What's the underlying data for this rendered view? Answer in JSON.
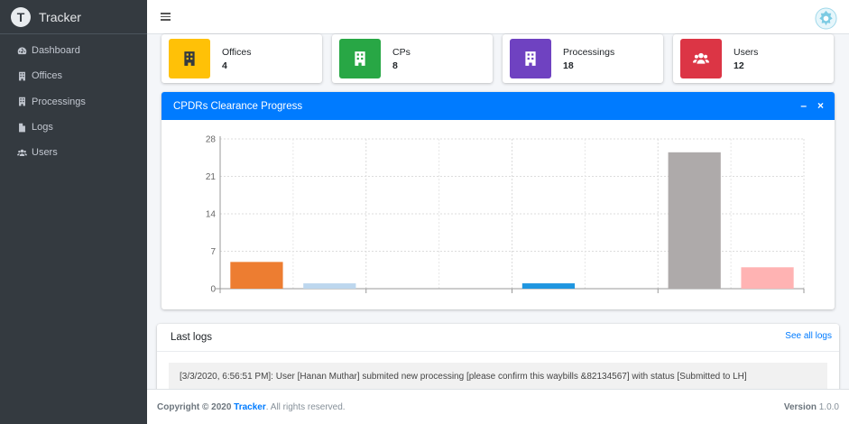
{
  "brand": {
    "logo_letter": "T",
    "name": "Tracker"
  },
  "sidebar": {
    "items": [
      {
        "label": "Dashboard",
        "icon": "tachometer-icon"
      },
      {
        "label": "Offices",
        "icon": "building-icon"
      },
      {
        "label": "Processings",
        "icon": "building-icon"
      },
      {
        "label": "Logs",
        "icon": "file-icon"
      },
      {
        "label": "Users",
        "icon": "users-icon"
      }
    ]
  },
  "info_boxes": [
    {
      "label": "Offices",
      "value": "4",
      "color": "#ffc107",
      "icon": "building-icon"
    },
    {
      "label": "CPs",
      "value": "8",
      "color": "#28a745",
      "icon": "building-icon"
    },
    {
      "label": "Processings",
      "value": "18",
      "color": "#6f42c1",
      "icon": "building-icon"
    },
    {
      "label": "Users",
      "value": "12",
      "color": "#dc3545",
      "icon": "users-icon"
    }
  ],
  "chart_card": {
    "title": "CPDRs Clearance Progress",
    "minimize": "–",
    "close": "×",
    "header_color": "#007bff"
  },
  "chart_data": {
    "type": "bar",
    "ylim": [
      0,
      28
    ],
    "yticks": [
      "28",
      "21",
      "14",
      "7",
      "0"
    ],
    "grid": true,
    "bars": [
      {
        "value": 5,
        "color": "#ed7d31"
      },
      {
        "value": 1,
        "color": "#bdd7ee"
      },
      {
        "value": 0,
        "color": "#70ad47"
      },
      {
        "value": 0,
        "color": "#ffc000"
      },
      {
        "value": 1,
        "color": "#1f96e0"
      },
      {
        "value": 0,
        "color": "#9e480e"
      },
      {
        "value": 25.5,
        "color": "#aeaaaa"
      },
      {
        "value": 4,
        "color": "#ffb3b3"
      }
    ]
  },
  "logs": {
    "title": "Last logs",
    "see_all": "See all logs",
    "entries": [
      "[3/3/2020, 6:56:51 PM]: User [Hanan Muthar] submited new processing [please confirm this waybills &82134567] with status [Submitted to LH]"
    ]
  },
  "footer": {
    "copyright_prefix": "Copyright © 2020 ",
    "brand_link": "Tracker",
    "suffix": ". All rights reserved.",
    "version_label": "Version",
    "version": " 1.0.0"
  }
}
